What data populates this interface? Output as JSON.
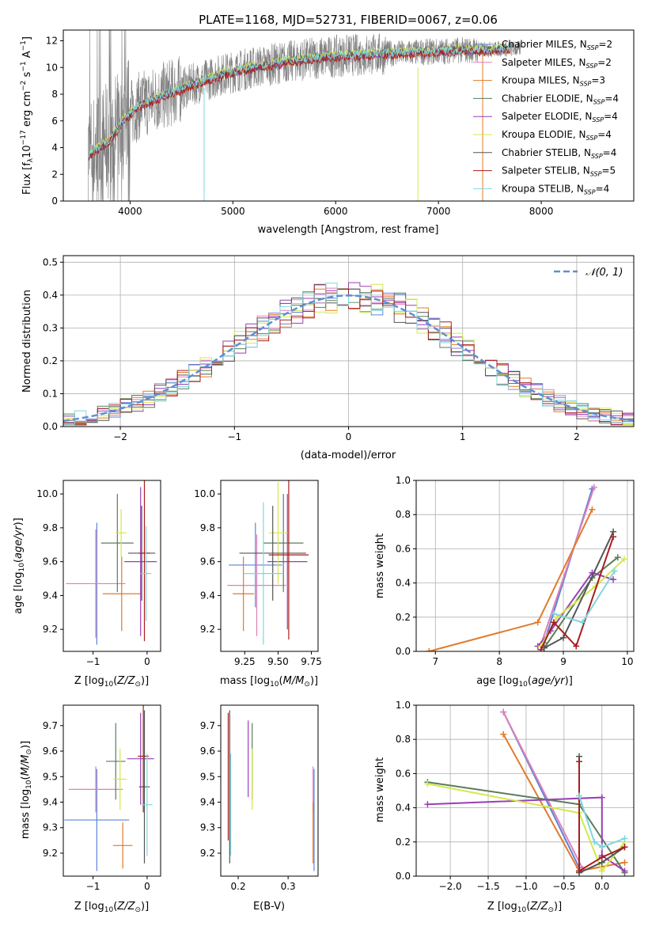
{
  "colors": {
    "spectrum": "#808080",
    "grid": "#b0b0b0",
    "normal": "#5b8fd6",
    "series": [
      "#5b84d6",
      "#e07fb9",
      "#e07b2a",
      "#5a7d5a",
      "#9a3fb5",
      "#d4e84a",
      "#555555",
      "#a81e1e",
      "#7fd6df"
    ]
  },
  "chart_data": [
    {
      "id": "spectrum",
      "type": "line",
      "title": "PLATE=1168, MJD=52731, FIBERID=0067, z=0.06",
      "xlabel": "wavelength [Angstrom, rest frame]",
      "ylabel": "Flux [f_λ 10^-17 erg cm^-2 s^-1 A^-1]",
      "xlim": [
        3350,
        8900
      ],
      "ylim": [
        0,
        12.8
      ],
      "xticks": [
        4000,
        5000,
        6000,
        7000,
        8000
      ],
      "yticks": [
        0,
        2,
        4,
        6,
        8,
        10,
        12
      ],
      "grid": false,
      "legend_position": "right",
      "legend": [
        {
          "name": "Chabrier MILES",
          "nssp": "2"
        },
        {
          "name": "Salpeter MILES",
          "nssp": "2"
        },
        {
          "name": "Kroupa MILES",
          "nssp": "3"
        },
        {
          "name": "Chabrier ELODIE",
          "nssp": "4"
        },
        {
          "name": "Salpeter ELODIE",
          "nssp": "4"
        },
        {
          "name": "Kroupa ELODIE",
          "nssp": "4"
        },
        {
          "name": "Chabrier STELIB",
          "nssp": "4"
        },
        {
          "name": "Salpeter STELIB",
          "nssp": "5"
        },
        {
          "name": "Kroupa STELIB",
          "nssp": "4"
        }
      ],
      "model_continuum": {
        "x": [
          3600,
          3800,
          3950,
          4100,
          4300,
          4600,
          4900,
          5200,
          5500,
          5800,
          6100,
          6400,
          6700,
          7000,
          7200,
          7400,
          7600,
          7800
        ],
        "y": [
          3.5,
          4.5,
          6.2,
          7.2,
          7.8,
          8.7,
          9.5,
          10.0,
          10.4,
          10.7,
          10.9,
          11.0,
          11.1,
          11.2,
          11.3,
          11.3,
          11.4,
          11.4
        ]
      }
    },
    {
      "id": "residuals",
      "type": "histogram",
      "xlabel": "(data-model)/error",
      "ylabel": "Normed distribution",
      "xlim": [
        -2.5,
        2.5
      ],
      "ylim": [
        0,
        0.52
      ],
      "xticks": [
        -2,
        -1,
        0,
        1,
        2
      ],
      "yticks": [
        0.0,
        0.1,
        0.2,
        0.3,
        0.4,
        0.5
      ],
      "grid": true,
      "legend": [
        {
          "name": "N(0,1)"
        }
      ],
      "bin_width": 0.1
    },
    {
      "id": "age-vs-z",
      "type": "errorbar",
      "xlabel": "Z [log10(Z/Z⊙)]",
      "ylabel": "age  [log10(age/yr)]",
      "xlim": [
        -1.55,
        0.25
      ],
      "ylim": [
        9.07,
        10.08
      ],
      "xticks": [
        -1,
        0
      ],
      "yticks": [
        9.2,
        9.4,
        9.6,
        9.8,
        10.0
      ],
      "grid": false,
      "points": [
        {
          "x": -0.93,
          "xerr": 0.0,
          "y": 9.47,
          "yerr": 0.36
        },
        {
          "x": -0.95,
          "xerr": 0.55,
          "y": 9.47,
          "yerr": 0.32
        },
        {
          "x": -0.47,
          "xerr": 0.35,
          "y": 9.41,
          "yerr": 0.22
        },
        {
          "x": -0.55,
          "xerr": 0.3,
          "y": 9.71,
          "yerr": 0.29
        },
        {
          "x": -0.12,
          "xerr": 0.3,
          "y": 9.6,
          "yerr": 0.44
        },
        {
          "x": -0.48,
          "xerr": 0.1,
          "y": 9.77,
          "yerr": 0.14
        },
        {
          "x": -0.1,
          "xerr": 0.25,
          "y": 9.65,
          "yerr": 0.28
        },
        {
          "x": -0.05,
          "xerr": 0.1,
          "y": 9.65,
          "yerr": 0.52
        },
        {
          "x": -0.02,
          "xerr": 0.1,
          "y": 9.53,
          "yerr": 0.28
        }
      ]
    },
    {
      "id": "age-vs-mass",
      "type": "errorbar",
      "xlabel": "mass [log10(M/M⊙)]",
      "ylabel": "",
      "xlim": [
        9.07,
        9.8
      ],
      "ylim": [
        9.07,
        10.08
      ],
      "xticks": [
        9.25,
        9.5,
        9.75
      ],
      "yticks": [
        9.2,
        9.4,
        9.6,
        9.8,
        10.0
      ],
      "grid": false,
      "points": [
        {
          "x": 9.33,
          "xerr": 0.2,
          "y": 9.58,
          "yerr": 0.25
        },
        {
          "x": 9.34,
          "xerr": 0.22,
          "y": 9.46,
          "yerr": 0.3
        },
        {
          "x": 9.24,
          "xerr": 0.08,
          "y": 9.41,
          "yerr": 0.22
        },
        {
          "x": 9.54,
          "xerr": 0.15,
          "y": 9.71,
          "yerr": 0.29
        },
        {
          "x": 9.57,
          "xerr": 0.15,
          "y": 9.6,
          "yerr": 0.4
        },
        {
          "x": 9.5,
          "xerr": 0.07,
          "y": 9.77,
          "yerr": 0.3
        },
        {
          "x": 9.46,
          "xerr": 0.25,
          "y": 9.65,
          "yerr": 0.28
        },
        {
          "x": 9.58,
          "xerr": 0.15,
          "y": 9.64,
          "yerr": 0.5
        },
        {
          "x": 9.39,
          "xerr": 0.15,
          "y": 9.53,
          "yerr": 0.42
        }
      ]
    },
    {
      "id": "massweight-vs-age",
      "type": "line",
      "xlabel": "age  [log10(age/yr)]",
      "ylabel": "mass weight",
      "xlim": [
        6.7,
        10.1
      ],
      "ylim": [
        0,
        1.0
      ],
      "xticks": [
        7,
        8,
        9,
        10
      ],
      "yticks": [
        0.0,
        0.2,
        0.4,
        0.6,
        0.8,
        1.0
      ],
      "grid": true,
      "series": [
        {
          "x": [
            8.7,
            9.45
          ],
          "y": [
            0.05,
            0.95
          ]
        },
        {
          "x": [
            8.65,
            9.48
          ],
          "y": [
            0.04,
            0.96
          ]
        },
        {
          "x": [
            6.9,
            8.6,
            9.45
          ],
          "y": [
            0.0,
            0.17,
            0.83
          ]
        },
        {
          "x": [
            8.7,
            9.45,
            9.85
          ],
          "y": [
            0.02,
            0.43,
            0.55
          ]
        },
        {
          "x": [
            8.6,
            8.8,
            9.45,
            9.78
          ],
          "y": [
            0.03,
            0.12,
            0.46,
            0.42
          ]
        },
        {
          "x": [
            8.65,
            8.9,
            9.5,
            9.95
          ],
          "y": [
            0.03,
            0.2,
            0.38,
            0.54
          ]
        },
        {
          "x": [
            8.7,
            9.0,
            9.78
          ],
          "y": [
            0.02,
            0.08,
            0.7
          ]
        },
        {
          "x": [
            8.65,
            8.85,
            9.2,
            9.78
          ],
          "y": [
            0.01,
            0.17,
            0.03,
            0.67
          ]
        },
        {
          "x": [
            8.85,
            9.3,
            9.8
          ],
          "y": [
            0.22,
            0.17,
            0.47
          ]
        }
      ]
    },
    {
      "id": "mass-vs-z",
      "type": "errorbar",
      "xlabel": "Z [log10(Z/Z⊙)]",
      "ylabel": "mass [log10(M/M⊙)]",
      "xlim": [
        -1.55,
        0.25
      ],
      "ylim": [
        9.11,
        9.78
      ],
      "xticks": [
        -1,
        0
      ],
      "yticks": [
        9.2,
        9.3,
        9.4,
        9.5,
        9.6,
        9.7
      ],
      "grid": false,
      "points": [
        {
          "x": -0.93,
          "xerr": 0.6,
          "y": 9.33,
          "yerr": 0.2
        },
        {
          "x": -0.95,
          "xerr": 0.5,
          "y": 9.45,
          "yerr": 0.09
        },
        {
          "x": -0.45,
          "xerr": 0.18,
          "y": 9.23,
          "yerr": 0.09
        },
        {
          "x": -0.58,
          "xerr": 0.18,
          "y": 9.56,
          "yerr": 0.15
        },
        {
          "x": -0.12,
          "xerr": 0.25,
          "y": 9.57,
          "yerr": 0.18
        },
        {
          "x": -0.5,
          "xerr": 0.12,
          "y": 9.49,
          "yerr": 0.12
        },
        {
          "x": -0.05,
          "xerr": 0.1,
          "y": 9.46,
          "yerr": 0.3
        },
        {
          "x": -0.07,
          "xerr": 0.1,
          "y": 9.58,
          "yerr": 0.22
        },
        {
          "x": 0.0,
          "xerr": 0.1,
          "y": 9.39,
          "yerr": 0.2
        }
      ]
    },
    {
      "id": "mass-vs-ebv",
      "type": "errorbar",
      "xlabel": "E(B-V)",
      "ylabel": "",
      "xlim": [
        0.165,
        0.36
      ],
      "ylim": [
        9.11,
        9.78
      ],
      "xticks": [
        0.2,
        0.3
      ],
      "yticks": [
        9.2,
        9.3,
        9.4,
        9.5,
        9.6,
        9.7
      ],
      "grid": false,
      "points": [
        {
          "x": 0.352,
          "y": 9.33,
          "yerr": 0.2
        },
        {
          "x": 0.35,
          "y": 9.45,
          "yerr": 0.09
        },
        {
          "x": 0.35,
          "y": 9.28,
          "yerr": 0.12
        },
        {
          "x": 0.228,
          "y": 9.56,
          "yerr": 0.15
        },
        {
          "x": 0.22,
          "y": 9.57,
          "yerr": 0.15
        },
        {
          "x": 0.228,
          "y": 9.49,
          "yerr": 0.12
        },
        {
          "x": 0.183,
          "y": 9.46,
          "yerr": 0.3
        },
        {
          "x": 0.18,
          "y": 9.5,
          "yerr": 0.25
        },
        {
          "x": 0.185,
          "y": 9.39,
          "yerr": 0.2
        }
      ]
    },
    {
      "id": "massweight-vs-z",
      "type": "line",
      "xlabel": "Z [log10(Z/Z⊙)]",
      "ylabel": "mass weight",
      "xlim": [
        -2.45,
        0.42
      ],
      "ylim": [
        0,
        1.0
      ],
      "xticks": [
        -2.0,
        -1.5,
        -1.0,
        -0.5,
        0.0
      ],
      "yticks": [
        0.0,
        0.2,
        0.4,
        0.6,
        0.8,
        1.0
      ],
      "grid": true,
      "series": [
        {
          "x": [
            -1.3,
            -0.3
          ],
          "y": [
            0.96,
            0.05
          ]
        },
        {
          "x": [
            -1.3,
            -0.25
          ],
          "y": [
            0.96,
            0.04
          ]
        },
        {
          "x": [
            -1.3,
            -0.3,
            0.3
          ],
          "y": [
            0.83,
            0.03,
            0.08
          ]
        },
        {
          "x": [
            -2.3,
            -0.3,
            0.3
          ],
          "y": [
            0.55,
            0.42,
            0.02
          ]
        },
        {
          "x": [
            -2.3,
            0.0,
            0.0,
            0.3
          ],
          "y": [
            0.42,
            0.46,
            0.12,
            0.03
          ]
        },
        {
          "x": [
            -2.3,
            -0.3,
            0.0,
            0.3
          ],
          "y": [
            0.54,
            0.37,
            0.03,
            0.2
          ]
        },
        {
          "x": [
            -0.3,
            -0.3,
            0.0,
            0.3
          ],
          "y": [
            0.7,
            0.02,
            0.08,
            0.17
          ]
        },
        {
          "x": [
            -0.3,
            -0.3,
            0.0,
            0.3
          ],
          "y": [
            0.67,
            0.03,
            0.11,
            0.17
          ]
        },
        {
          "x": [
            -0.3,
            -0.1,
            0.0,
            0.3
          ],
          "y": [
            0.47,
            0.2,
            0.17,
            0.22
          ]
        }
      ]
    }
  ]
}
